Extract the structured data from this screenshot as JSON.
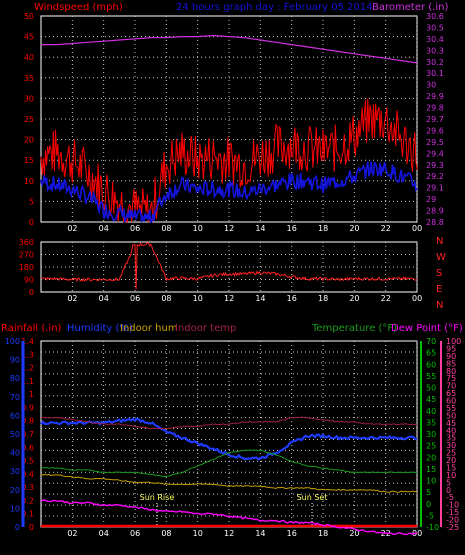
{
  "header": {
    "left": "Windspeed (mph)",
    "center": "24 hours graph day : February 05 2014",
    "right": "Barometer (.in)"
  },
  "colors": {
    "bg": "#000000",
    "grid": "#c8c8c8",
    "axis": "#ffffff",
    "wind_gust": "#ff0000",
    "wind_avg": "#1414dc",
    "barometer": "#d030e0",
    "direction": "#ff2020",
    "humidity": "#1e3cff",
    "indoor_hum": "#c8a000",
    "indoor_temp": "#a02040",
    "temperature": "#1a9a1a",
    "dew_point": "#ff00ff",
    "rain": "#ff0000",
    "rain_axis": "#ff0000",
    "humidity_axis": "#1e3cff",
    "temp_axis": "#00c000",
    "dew_axis": "#ff40a0",
    "compass": "#ff2020",
    "sun": "#ffff60"
  },
  "x_ticks": [
    "02",
    "04",
    "06",
    "08",
    "10",
    "12",
    "14",
    "16",
    "18",
    "20",
    "22",
    "00"
  ],
  "compass": [
    "N",
    "W",
    "S",
    "E",
    "N"
  ],
  "bottom_legend": {
    "rainfall": "Rainfall (.in)",
    "humidity": "Humidity (%)",
    "indoor_hum": "Indoor hum",
    "indoor_temp": "Indoor temp",
    "temperature": "Temperature (°F)",
    "dew_point": "Dew Point (°F)"
  },
  "sun_labels": {
    "rise": "Sun Rise",
    "set": "Sun Set"
  },
  "chart_data": [
    {
      "type": "line",
      "title": "24 hours graph day : February 05 2014",
      "ylabel": "Windspeed (mph)",
      "ylim": [
        0,
        50
      ],
      "y_ticks": [
        "0",
        "5",
        "10",
        "15",
        "20",
        "25",
        "30",
        "35",
        "40",
        "45",
        "50"
      ],
      "ylabel_right": "Barometer (.in)",
      "ylim_right": [
        28.8,
        30.6
      ],
      "y_ticks_right": [
        "28.8",
        "28.9",
        "29",
        "29.1",
        "29.2",
        "29.3",
        "29.4",
        "29.5",
        "29.6",
        "29.7",
        "29.8",
        "29.9",
        "30",
        "30.1",
        "30.2",
        "30.3",
        "30.4",
        "30.5",
        "30.6"
      ],
      "x": [
        0,
        1,
        2,
        3,
        4,
        5,
        6,
        7,
        8,
        9,
        10,
        11,
        12,
        13,
        14,
        15,
        16,
        17,
        18,
        19,
        20,
        21,
        22,
        23,
        24
      ],
      "series": [
        {
          "name": "Windspeed gust",
          "values": [
            16,
            17,
            15,
            12,
            8,
            5,
            3,
            2,
            14,
            17,
            15,
            16,
            15,
            14,
            16,
            18,
            19,
            18,
            17,
            18,
            21,
            25,
            25,
            20,
            17
          ]
        },
        {
          "name": "Windspeed average",
          "values": [
            10,
            9,
            8,
            6,
            3,
            2,
            1,
            1,
            7,
            9,
            8,
            8,
            8,
            7,
            8,
            9,
            10,
            10,
            9,
            10,
            11,
            13,
            13,
            11,
            9
          ]
        },
        {
          "name": "Barometer",
          "axis": "right",
          "values": [
            30.35,
            30.35,
            30.36,
            30.37,
            30.38,
            30.39,
            30.4,
            30.41,
            30.41,
            30.42,
            30.42,
            30.43,
            30.42,
            30.41,
            30.39,
            30.37,
            30.35,
            30.33,
            30.31,
            30.29,
            30.27,
            30.25,
            30.23,
            30.21,
            30.19
          ]
        }
      ]
    },
    {
      "type": "line",
      "ylim": [
        0,
        360
      ],
      "y_ticks": [
        "0",
        "90",
        "180",
        "270",
        "360"
      ],
      "x": [
        0,
        1,
        2,
        3,
        4,
        5,
        6,
        7,
        8,
        9,
        10,
        11,
        12,
        13,
        14,
        15,
        16,
        17,
        18,
        19,
        20,
        21,
        22,
        23,
        24
      ],
      "series": [
        {
          "name": "Wind direction",
          "values": [
            95,
            95,
            90,
            90,
            90,
            90,
            340,
            345,
            95,
            100,
            95,
            120,
            130,
            130,
            140,
            130,
            110,
            95,
            95,
            90,
            95,
            95,
            95,
            95,
            95
          ]
        }
      ]
    },
    {
      "type": "line",
      "ylim_rain": [
        0,
        1.4
      ],
      "y_ticks_rain": [
        "0",
        "0.1",
        "0.2",
        "0.3",
        "0.4",
        "0.5",
        "0.6",
        "0.7",
        "0.8",
        "0.9",
        "1",
        "1.1",
        "1.2",
        "1.3",
        "1.4"
      ],
      "ylim_humidity": [
        0,
        100
      ],
      "y_ticks_humidity": [
        "0",
        "10",
        "20",
        "30",
        "40",
        "50",
        "60",
        "70",
        "80",
        "90",
        "100"
      ],
      "ylim_temp": [
        -10,
        75
      ],
      "y_ticks_temp": [
        "-10",
        "-5",
        "0",
        "5",
        "10",
        "15",
        "20",
        "25",
        "30",
        "35",
        "40",
        "45",
        "50",
        "55",
        "60",
        "65",
        "70"
      ],
      "ylim_dew": [
        -25,
        105
      ],
      "y_ticks_dew": [
        "-25",
        "-20",
        "-15",
        "-10",
        "-5",
        "0",
        "5",
        "10",
        "15",
        "20",
        "25",
        "30",
        "35",
        "40",
        "45",
        "50",
        "55",
        "60",
        "65",
        "70",
        "75",
        "80",
        "85",
        "90",
        "95",
        "100"
      ],
      "x": [
        0,
        1,
        2,
        3,
        4,
        5,
        6,
        7,
        8,
        9,
        10,
        11,
        12,
        13,
        14,
        15,
        16,
        17,
        18,
        19,
        20,
        21,
        22,
        23,
        24
      ],
      "series": [
        {
          "name": "Rainfall",
          "values": [
            0,
            0,
            0,
            0,
            0,
            0,
            0,
            0,
            0,
            0,
            0,
            0,
            0,
            0,
            0,
            0,
            0,
            0,
            0,
            0,
            0,
            0,
            0,
            0,
            0
          ]
        },
        {
          "name": "Humidity",
          "values": [
            56,
            56,
            56,
            56,
            56,
            57,
            58,
            56,
            51,
            48,
            45,
            42,
            39,
            37,
            37,
            40,
            45,
            49,
            49,
            48,
            48,
            48,
            48,
            48,
            48
          ]
        },
        {
          "name": "Indoor hum",
          "values": [
            28,
            28,
            27,
            26,
            26,
            25,
            24,
            24,
            23,
            23,
            23,
            23,
            22,
            22,
            22,
            21,
            21,
            21,
            20,
            20,
            20,
            20,
            19,
            19,
            19
          ]
        },
        {
          "name": "Indoor temp",
          "values": [
            40,
            40,
            39,
            38,
            37,
            37,
            36,
            35,
            35,
            36,
            36,
            37,
            37,
            38,
            38,
            38,
            40,
            40,
            39,
            38,
            38,
            37,
            37,
            37,
            37
          ]
        },
        {
          "name": "Temperature",
          "values": [
            17,
            17,
            16,
            16,
            15,
            15,
            15,
            14,
            13,
            15,
            18,
            21,
            24,
            25,
            25,
            23,
            20,
            18,
            17,
            16,
            15,
            15,
            15,
            15,
            15
          ]
        },
        {
          "name": "Dew Point",
          "values": [
            2,
            2,
            1,
            1,
            0,
            0,
            -1,
            -2,
            -3,
            -3,
            -4,
            -4,
            -5,
            -6,
            -7,
            -7,
            -8,
            -8,
            -9,
            -10,
            -11,
            -12,
            -13,
            -13,
            -13
          ]
        }
      ],
      "sun_rise_hour": 7.4,
      "sun_set_hour": 17.3
    }
  ]
}
